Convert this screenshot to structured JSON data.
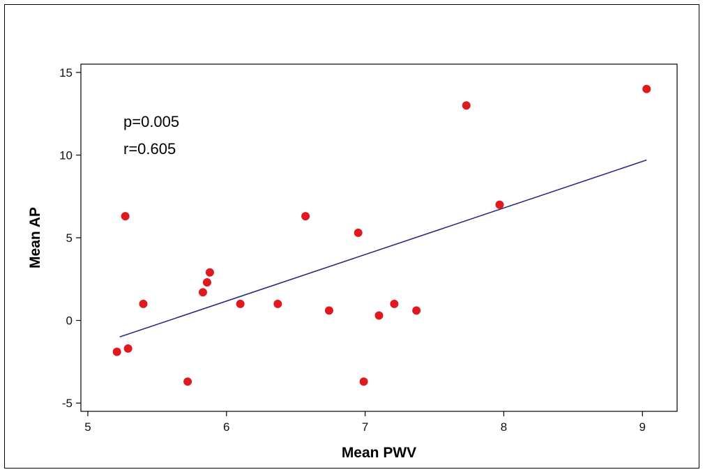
{
  "chart_data": {
    "type": "scatter",
    "xlabel": "Mean PWV",
    "ylabel": "Mean  AP",
    "xlim": [
      4.95,
      9.25
    ],
    "ylim": [
      -5.5,
      15.5
    ],
    "xticks": [
      5,
      6,
      7,
      8,
      9
    ],
    "yticks": [
      -5,
      0,
      5,
      10,
      15
    ],
    "xtick_labels": [
      "5",
      "6",
      "7",
      "8",
      "9"
    ],
    "ytick_labels": [
      "-5",
      "0",
      "5",
      "10",
      "15"
    ],
    "grid": false,
    "annotations": [
      "p=0.005",
      "r=0.605"
    ],
    "point_color": "#e0191f",
    "line_color": "#2b2b80",
    "points": [
      {
        "x": 5.21,
        "y": -1.9
      },
      {
        "x": 5.27,
        "y": 6.3
      },
      {
        "x": 5.29,
        "y": -1.7
      },
      {
        "x": 5.4,
        "y": 1.0
      },
      {
        "x": 5.72,
        "y": -3.7
      },
      {
        "x": 5.83,
        "y": 1.7
      },
      {
        "x": 5.86,
        "y": 2.3
      },
      {
        "x": 5.88,
        "y": 2.9
      },
      {
        "x": 6.1,
        "y": 1.0
      },
      {
        "x": 6.37,
        "y": 1.0
      },
      {
        "x": 6.57,
        "y": 6.3
      },
      {
        "x": 6.74,
        "y": 0.6
      },
      {
        "x": 6.95,
        "y": 5.3
      },
      {
        "x": 6.99,
        "y": -3.7
      },
      {
        "x": 7.1,
        "y": 0.3
      },
      {
        "x": 7.21,
        "y": 1.0
      },
      {
        "x": 7.37,
        "y": 0.6
      },
      {
        "x": 7.73,
        "y": 13.0
      },
      {
        "x": 7.97,
        "y": 7.0
      },
      {
        "x": 9.03,
        "y": 14.0
      }
    ],
    "fit_line": [
      {
        "x": 5.23,
        "y": -1.0
      },
      {
        "x": 9.03,
        "y": 9.7
      }
    ]
  }
}
